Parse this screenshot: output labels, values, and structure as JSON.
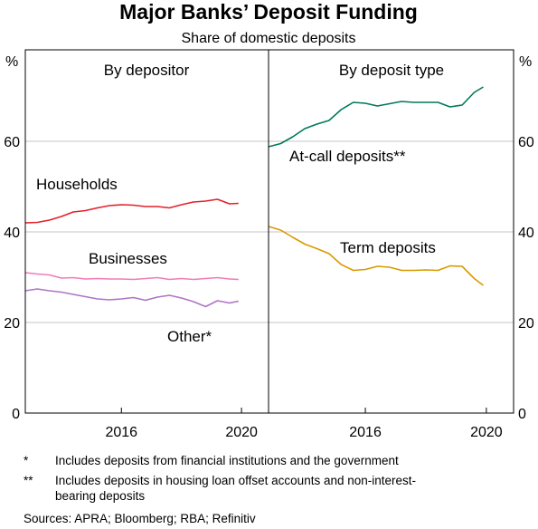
{
  "title": "Major Banks’ Deposit Funding",
  "subtitle": "Share of domestic deposits",
  "unit_left": "%",
  "unit_right": "%",
  "footnotes": [
    {
      "mark": "*",
      "text": "Includes deposits from financial institutions and the government"
    },
    {
      "mark": "**",
      "text": "Includes deposits in housing loan offset accounts and non-interest-bearing deposits"
    }
  ],
  "sources": "Sources: APRA; Bloomberg; RBA; Refinitiv",
  "colors": {
    "households": "#e4202a",
    "businesses": "#f07bb8",
    "other": "#b073c6",
    "at_call": "#00785a",
    "term": "#d99a00",
    "grid": "#c6c6c6"
  },
  "chart_data": [
    {
      "type": "line",
      "title": "By depositor",
      "ylim": [
        0,
        80
      ],
      "yticks": [
        0,
        20,
        40,
        60
      ],
      "xlim": [
        2012.8,
        2020.9
      ],
      "xticks": [
        2016,
        2020
      ],
      "grid": true,
      "series": [
        {
          "name": "Households",
          "color_key": "households",
          "x": [
            2012.8,
            2013.2,
            2013.6,
            2014.0,
            2014.4,
            2014.8,
            2015.2,
            2015.6,
            2016.0,
            2016.4,
            2016.8,
            2017.2,
            2017.6,
            2018.0,
            2018.4,
            2018.8,
            2019.2,
            2019.6,
            2019.9
          ],
          "y": [
            42.0,
            42.1,
            42.6,
            43.4,
            44.4,
            44.7,
            45.3,
            45.8,
            46.0,
            45.9,
            45.6,
            45.6,
            45.3,
            46.0,
            46.6,
            46.8,
            47.2,
            46.2,
            46.3
          ]
        },
        {
          "name": "Businesses",
          "color_key": "businesses",
          "x": [
            2012.8,
            2013.2,
            2013.6,
            2014.0,
            2014.4,
            2014.8,
            2015.2,
            2015.6,
            2016.0,
            2016.4,
            2016.8,
            2017.2,
            2017.6,
            2018.0,
            2018.4,
            2018.8,
            2019.2,
            2019.6,
            2019.9
          ],
          "y": [
            31.0,
            30.7,
            30.5,
            29.8,
            29.9,
            29.6,
            29.7,
            29.6,
            29.6,
            29.5,
            29.7,
            29.9,
            29.5,
            29.7,
            29.5,
            29.7,
            29.9,
            29.6,
            29.5
          ]
        },
        {
          "name": "Other*",
          "color_key": "other",
          "x": [
            2012.8,
            2013.2,
            2013.6,
            2014.0,
            2014.4,
            2014.8,
            2015.2,
            2015.6,
            2016.0,
            2016.4,
            2016.8,
            2017.2,
            2017.6,
            2018.0,
            2018.4,
            2018.8,
            2019.2,
            2019.6,
            2019.9
          ],
          "y": [
            27.0,
            27.4,
            27.0,
            26.7,
            26.2,
            25.7,
            25.2,
            25.0,
            25.2,
            25.5,
            24.9,
            25.6,
            26.0,
            25.4,
            24.6,
            23.5,
            24.8,
            24.3,
            24.7
          ]
        }
      ]
    },
    {
      "type": "line",
      "title": "By deposit type",
      "ylim": [
        0,
        80
      ],
      "yticks": [
        0,
        20,
        40,
        60
      ],
      "xlim": [
        2012.8,
        2020.9
      ],
      "xticks": [
        2016,
        2020
      ],
      "grid": true,
      "series": [
        {
          "name": "At-call deposits**",
          "color_key": "at_call",
          "x": [
            2012.8,
            2013.2,
            2013.6,
            2014.0,
            2014.4,
            2014.8,
            2015.2,
            2015.6,
            2016.0,
            2016.4,
            2016.8,
            2017.2,
            2017.6,
            2018.0,
            2018.4,
            2018.8,
            2019.2,
            2019.6,
            2019.9
          ],
          "y": [
            58.8,
            59.5,
            61.0,
            62.8,
            63.8,
            64.6,
            67.0,
            68.6,
            68.4,
            67.8,
            68.3,
            68.8,
            68.6,
            68.6,
            68.6,
            67.6,
            68.0,
            70.8,
            72.0
          ]
        },
        {
          "name": "Term deposits",
          "color_key": "term",
          "x": [
            2012.8,
            2013.2,
            2013.6,
            2014.0,
            2014.4,
            2014.8,
            2015.2,
            2015.6,
            2016.0,
            2016.4,
            2016.8,
            2017.2,
            2017.6,
            2018.0,
            2018.4,
            2018.8,
            2019.2,
            2019.6,
            2019.9
          ],
          "y": [
            41.2,
            40.4,
            38.8,
            37.3,
            36.3,
            35.2,
            32.8,
            31.5,
            31.7,
            32.4,
            32.2,
            31.5,
            31.5,
            31.6,
            31.5,
            32.5,
            32.4,
            29.7,
            28.2
          ]
        }
      ]
    }
  ]
}
